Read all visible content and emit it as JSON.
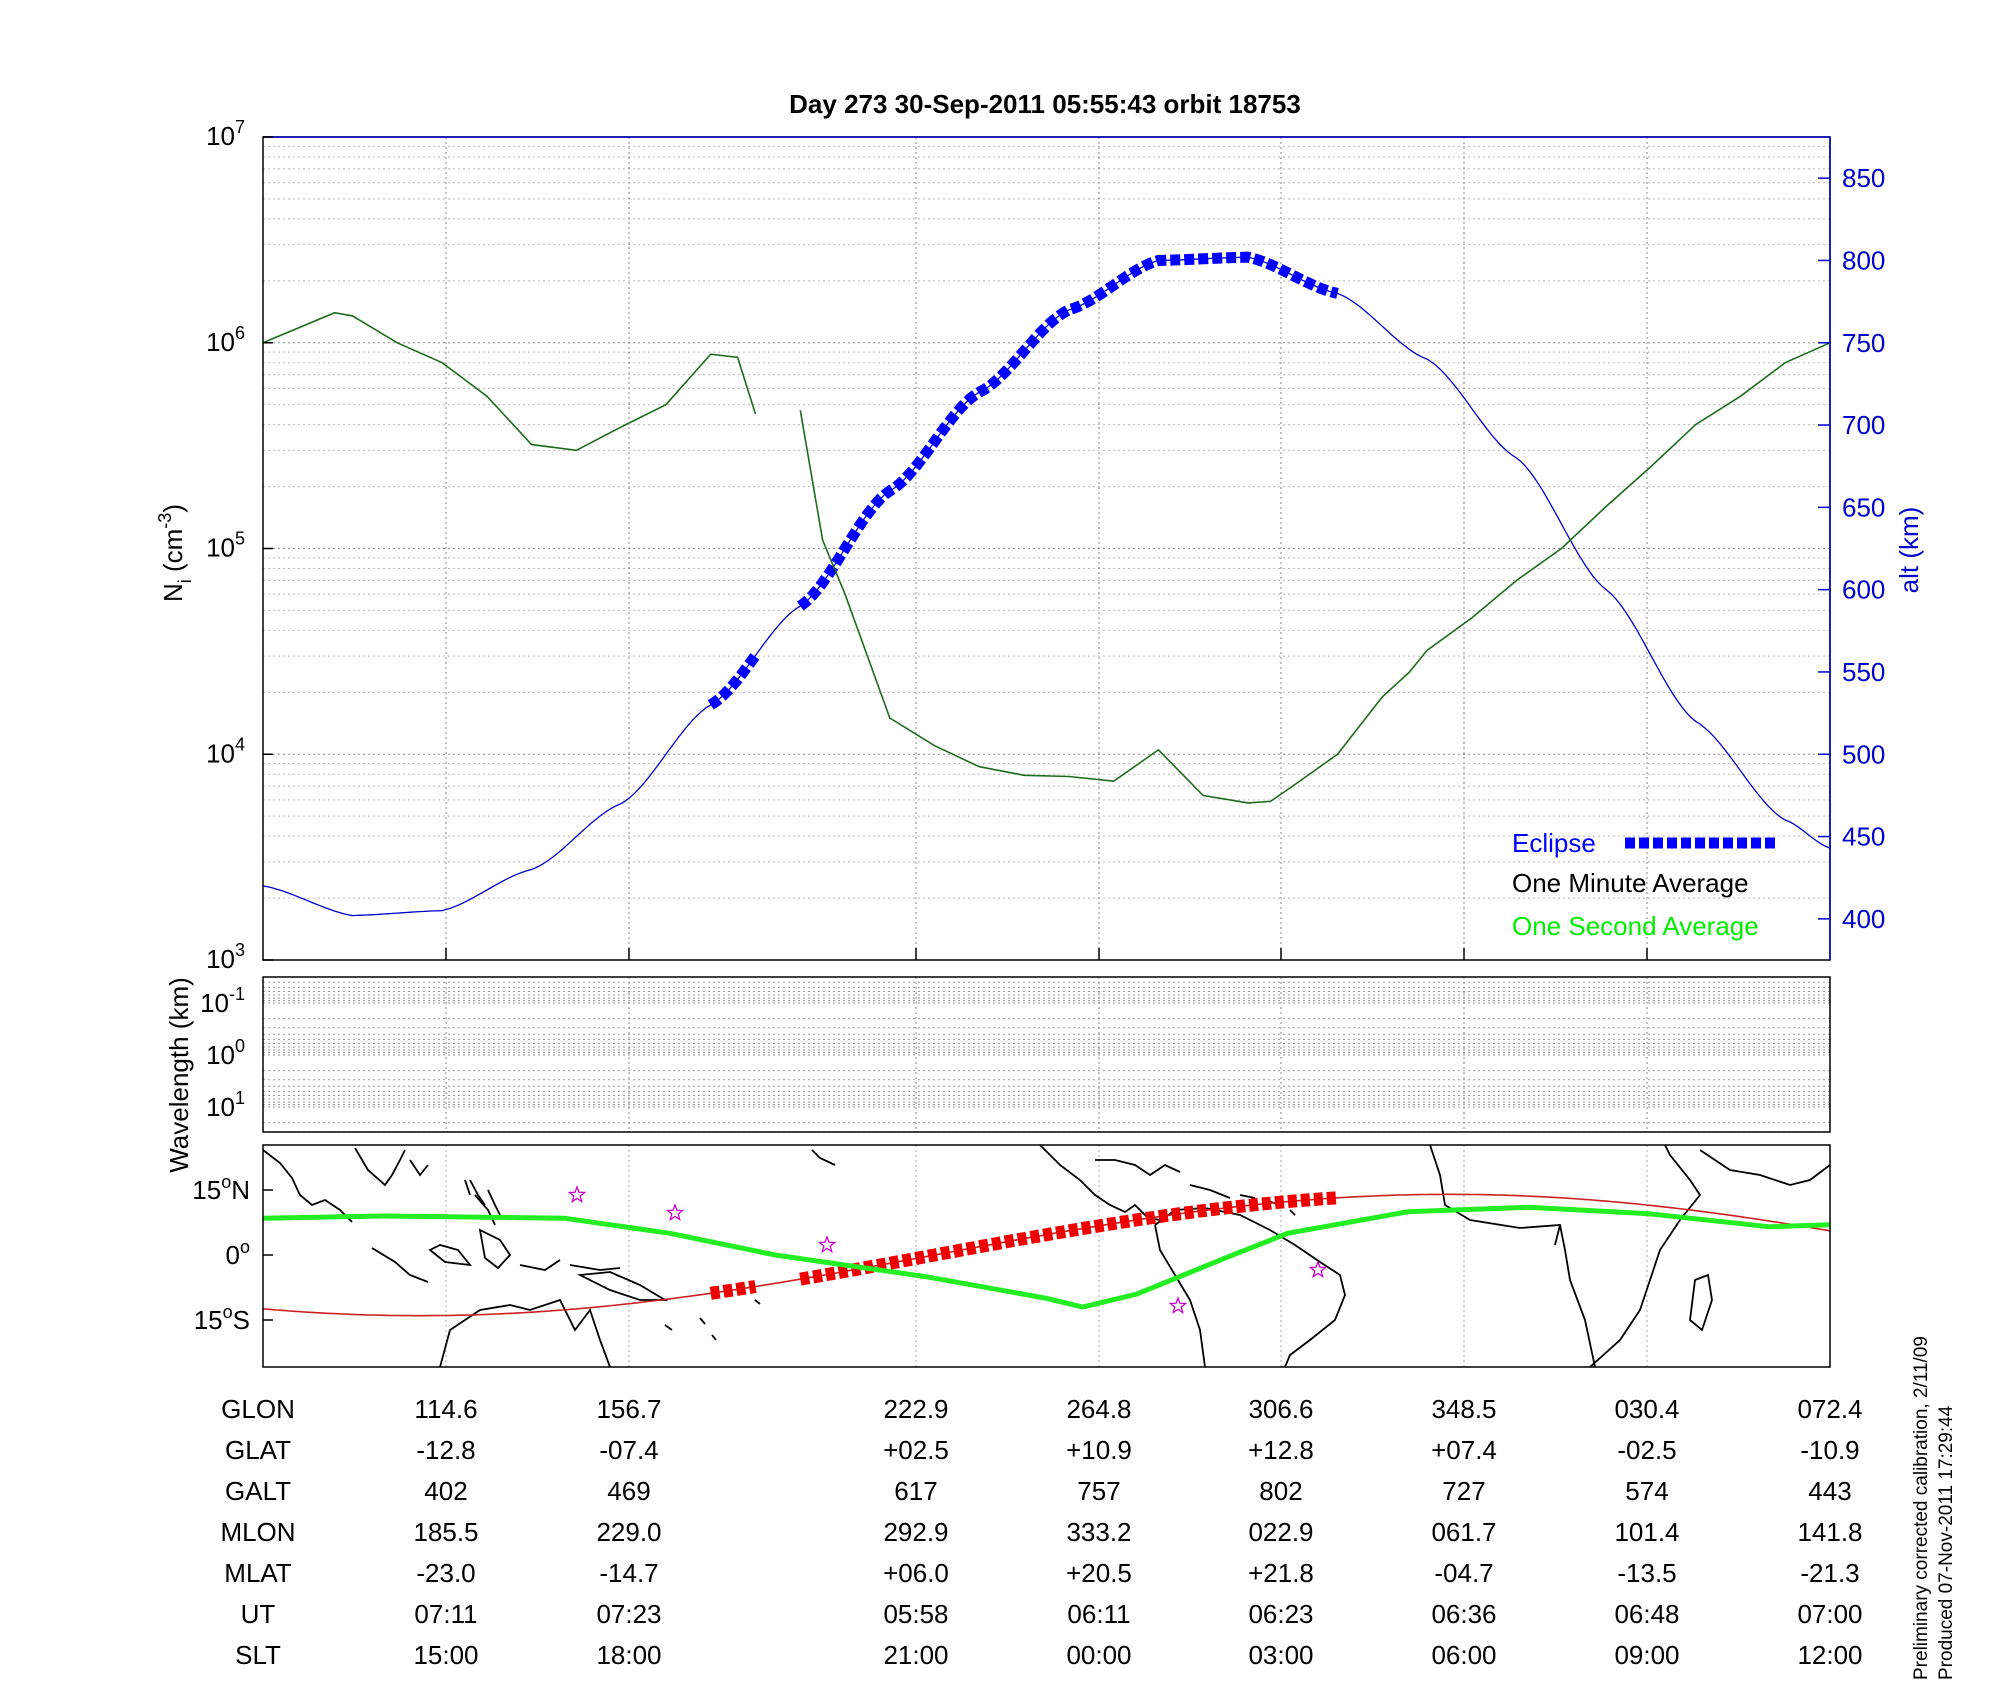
{
  "title": "Day 273  30-Sep-2011 05:55:43   orbit 18753",
  "colors": {
    "eclipse": "#0000ff",
    "one_minute": "#000000",
    "one_second": "#00ff00",
    "alt_axis": "#0000cc",
    "density": "#006400",
    "track": "#cc0000",
    "map_star": "#cc00cc"
  },
  "top_panel": {
    "ylabel": "N",
    "ylabel_sub": "i",
    "ylabel_unit": " (cm",
    "ylabel_sup": "-3",
    "ylabel_close": ")",
    "right_label": "alt (km)",
    "yticks": [
      {
        "base": "10",
        "exp": "3"
      },
      {
        "base": "10",
        "exp": "4"
      },
      {
        "base": "10",
        "exp": "5"
      },
      {
        "base": "10",
        "exp": "6"
      },
      {
        "base": "10",
        "exp": "7"
      }
    ],
    "right_ticks": [
      "400",
      "450",
      "500",
      "550",
      "600",
      "650",
      "700",
      "750",
      "800",
      "850"
    ],
    "legend": {
      "eclipse": "Eclipse",
      "one_minute": "One Minute Average",
      "one_second": "One Second Average"
    }
  },
  "middle_panel": {
    "ylabel": "Wavelength (km)",
    "yticks": [
      {
        "base": "10",
        "exp": "-1"
      },
      {
        "base": "10",
        "exp": "0"
      },
      {
        "base": "10",
        "exp": "1"
      }
    ]
  },
  "map_panel": {
    "lat_ticks": [
      {
        "num": "15",
        "deg": "o",
        "hemi": "N"
      },
      {
        "num": "0",
        "deg": "o",
        "hemi": ""
      },
      {
        "num": "15",
        "deg": "o",
        "hemi": "S"
      }
    ]
  },
  "table": {
    "rows": [
      {
        "label": "GLON",
        "values": [
          "114.6",
          "156.7",
          "222.9",
          "264.8",
          "306.6",
          "348.5",
          "030.4",
          "072.4"
        ]
      },
      {
        "label": "GLAT",
        "values": [
          "-12.8",
          "-07.4",
          "+02.5",
          "+10.9",
          "+12.8",
          "+07.4",
          "-02.5",
          "-10.9"
        ]
      },
      {
        "label": "GALT",
        "values": [
          "402",
          "469",
          "617",
          "757",
          "802",
          "727",
          "574",
          "443"
        ]
      },
      {
        "label": "MLON",
        "values": [
          "185.5",
          "229.0",
          "292.9",
          "333.2",
          "022.9",
          "061.7",
          "101.4",
          "141.8"
        ]
      },
      {
        "label": "MLAT",
        "values": [
          "-23.0",
          "-14.7",
          "+06.0",
          "+20.5",
          "+21.8",
          "-04.7",
          "-13.5",
          "-21.3"
        ]
      },
      {
        "label": "UT",
        "values": [
          "07:11",
          "07:23",
          "05:58",
          "06:11",
          "06:23",
          "06:36",
          "06:48",
          "07:00"
        ]
      },
      {
        "label": "SLT",
        "values": [
          "15:00",
          "18:00",
          "21:00",
          "00:00",
          "03:00",
          "06:00",
          "09:00",
          "12:00"
        ]
      }
    ]
  },
  "side_note": {
    "line1": "Preliminary corrected calibration, 2/11/09",
    "line2": "Produced 07-Nov-2011 17:29:44"
  },
  "chart_data": {
    "type": "line",
    "x_scale": "geographic longitude along orbit (deg)",
    "y_scale": "log",
    "ylim": [
      1000,
      10000000
    ],
    "y2lim": [
      375,
      875
    ],
    "series": [
      {
        "name": "One Minute Average",
        "values_note": "ion density N_i (cm^-3), gap near GLON 190-200",
        "x": [
          80,
          96,
          100,
          110,
          120,
          130,
          140,
          150,
          160,
          170,
          180,
          186,
          190,
          200,
          205,
          210,
          220,
          230,
          240,
          250,
          260,
          270,
          280,
          290,
          296,
          300,
          305,
          310,
          320,
          330,
          336,
          340,
          350,
          360,
          370,
          380,
          390,
          400,
          410,
          420,
          430
        ],
        "y": [
          1000000,
          1400000,
          1350000,
          1000000,
          800000,
          550000,
          320000,
          300000,
          390000,
          500000,
          880000,
          850000,
          450000,
          470000,
          110000,
          60000,
          15000,
          11000,
          8700,
          7900,
          7800,
          7400,
          10500,
          6300,
          6000,
          5800,
          5900,
          7000,
          10000,
          19000,
          25000,
          32000,
          46000,
          70000,
          100000,
          160000,
          250000,
          400000,
          550000,
          800000,
          1000000
        ]
      },
      {
        "name": "alt (km)",
        "values_note": "satellite altitude on right axis",
        "x": [
          80,
          100,
          120,
          140,
          160,
          180,
          200,
          220,
          240,
          260,
          280,
          300,
          320,
          340,
          360,
          380,
          400,
          420,
          430
        ],
        "y": [
          420,
          402,
          405,
          430,
          470,
          530,
          590,
          660,
          720,
          770,
          800,
          802,
          780,
          740,
          680,
          600,
          520,
          460,
          443
        ]
      },
      {
        "name": "Eclipse",
        "x_ranges": [
          [
            180,
            190
          ],
          [
            200,
            320
          ]
        ]
      }
    ]
  }
}
